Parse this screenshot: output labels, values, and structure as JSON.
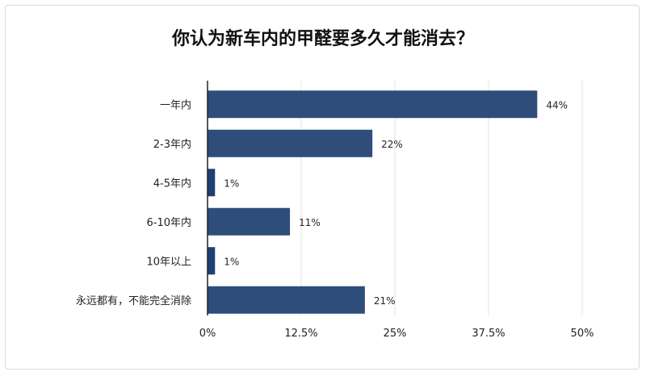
{
  "chart_data": {
    "type": "bar",
    "orientation": "horizontal",
    "title": "你认为新车内的甲醛要多久才能消去？",
    "categories": [
      "一年内",
      "2-3年内",
      "4-5年内",
      "6-10年内",
      "10年以上",
      "永远都有，不能完全消除"
    ],
    "values": [
      44,
      22,
      1,
      11,
      1,
      21
    ],
    "value_labels": [
      "44%",
      "22%",
      "1%",
      "11%",
      "1%",
      "21%"
    ],
    "xlim": [
      0,
      50
    ],
    "xticks": [
      0,
      12.5,
      25,
      37.5,
      50
    ],
    "xtick_labels": [
      "0%",
      "12.5%",
      "25%",
      "37.5%",
      "50%"
    ],
    "xlabel": "",
    "ylabel": "",
    "grid": "vertical",
    "bar_color": "#2e4d7b",
    "highlight_color": "#1f3f77"
  }
}
